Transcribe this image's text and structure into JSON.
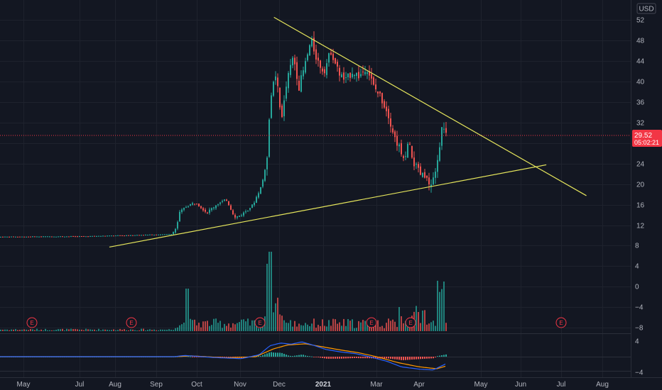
{
  "header": {
    "currency": "USD"
  },
  "price_badge": {
    "price": "29.52",
    "countdown": "05:02:21",
    "color": "#f23645"
  },
  "earnings_marker": "E",
  "colors": {
    "up": "#26a69a",
    "down": "#ef5350",
    "trendline": "#e6e65c",
    "macd": "#2962ff",
    "signal": "#ff9800",
    "grid": "#1e222d"
  },
  "chart_data": [
    {
      "type": "candlestick",
      "price_ticks": [
        52,
        48,
        44,
        40,
        36,
        32,
        28,
        24,
        20,
        16,
        12
      ],
      "time_ticks": [
        "May",
        "Jul",
        "Aug",
        "Sep",
        "Oct",
        "Nov",
        "Dec",
        "2021",
        "Mar",
        "Apr",
        "May",
        "Jun",
        "Jul",
        "Aug"
      ],
      "last_price": 29.52,
      "trendlines": [
        {
          "name": "descending",
          "from": [
            "2020-11-27",
            52.5
          ],
          "to": [
            "2021-07-20",
            17.8
          ]
        },
        {
          "name": "ascending",
          "from": [
            "2020-07-27",
            7.8
          ],
          "to": [
            "2021-06-20",
            23.8
          ]
        }
      ],
      "earnings_dates": [
        "2020-05",
        "2020-08",
        "2020-11",
        "2021-02",
        "2021-03",
        "2021-06"
      ]
    },
    {
      "type": "bar",
      "name": "volume",
      "y_ticks": [
        8,
        4,
        0,
        -4,
        -8
      ]
    },
    {
      "type": "line",
      "name": "macd",
      "y_ticks": [
        4,
        -4
      ]
    }
  ]
}
